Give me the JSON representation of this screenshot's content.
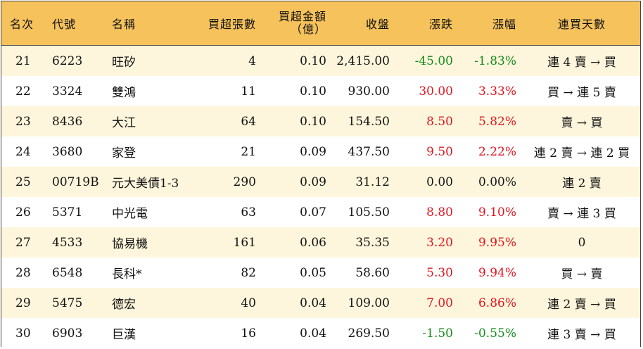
{
  "headers": {
    "rank": "名次",
    "code": "代號",
    "name": "名稱",
    "net_lots": "買超張數",
    "net_amount_line1": "買超金額",
    "net_amount_line2": "（億）",
    "close": "收盤",
    "change": "漲跌",
    "change_pct": "漲幅",
    "streak": "連買天數"
  },
  "rows": [
    {
      "rank": "21",
      "code": "6223",
      "name": "旺矽",
      "lots": "4",
      "amount": "0.10",
      "close": "2,415.00",
      "change": "-45.00",
      "pct": "-1.83%",
      "dir": "down",
      "streak": "連 4 賣 → 買"
    },
    {
      "rank": "22",
      "code": "3324",
      "name": "雙鴻",
      "lots": "11",
      "amount": "0.10",
      "close": "930.00",
      "change": "30.00",
      "pct": "3.33%",
      "dir": "up",
      "streak": "買 → 連 5 賣"
    },
    {
      "rank": "23",
      "code": "8436",
      "name": "大江",
      "lots": "64",
      "amount": "0.10",
      "close": "154.50",
      "change": "8.50",
      "pct": "5.82%",
      "dir": "up",
      "streak": "賣 → 買"
    },
    {
      "rank": "24",
      "code": "3680",
      "name": "家登",
      "lots": "21",
      "amount": "0.09",
      "close": "437.50",
      "change": "9.50",
      "pct": "2.22%",
      "dir": "up",
      "streak": "連 2 賣 → 連 2 買"
    },
    {
      "rank": "25",
      "code": "00719B",
      "name": "元大美債1-3",
      "lots": "290",
      "amount": "0.09",
      "close": "31.12",
      "change": "0.00",
      "pct": "0.00%",
      "dir": "flat",
      "streak": "連 2 賣"
    },
    {
      "rank": "26",
      "code": "5371",
      "name": "中光電",
      "lots": "63",
      "amount": "0.07",
      "close": "105.50",
      "change": "8.80",
      "pct": "9.10%",
      "dir": "up",
      "streak": "賣 → 連 3 買"
    },
    {
      "rank": "27",
      "code": "4533",
      "name": "協易機",
      "lots": "161",
      "amount": "0.06",
      "close": "35.35",
      "change": "3.20",
      "pct": "9.95%",
      "dir": "up",
      "streak": "0"
    },
    {
      "rank": "28",
      "code": "6548",
      "name": "長科*",
      "lots": "82",
      "amount": "0.05",
      "close": "58.60",
      "change": "5.30",
      "pct": "9.94%",
      "dir": "up",
      "streak": "買 → 賣"
    },
    {
      "rank": "29",
      "code": "5475",
      "name": "德宏",
      "lots": "40",
      "amount": "0.04",
      "close": "109.00",
      "change": "7.00",
      "pct": "6.86%",
      "dir": "up",
      "streak": "連 2 賣 → 買"
    },
    {
      "rank": "30",
      "code": "6903",
      "name": "巨漢",
      "lots": "16",
      "amount": "0.04",
      "close": "269.50",
      "change": "-1.50",
      "pct": "-0.55%",
      "dir": "down",
      "streak": "連 3 賣 → 買"
    }
  ]
}
